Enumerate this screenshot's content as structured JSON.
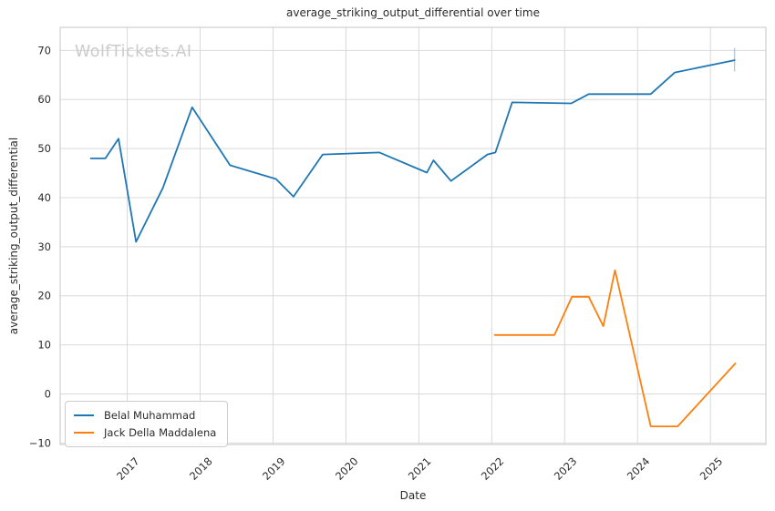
{
  "watermark": {
    "text": "WolfTickets.AI"
  },
  "chart_data": {
    "type": "line",
    "title": "average_striking_output_differential over time",
    "xlabel": "Date",
    "ylabel": "average_striking_output_differential",
    "xlim": [
      2016.08,
      2025.76
    ],
    "ylim": [
      -10.3,
      74.7
    ],
    "xticks": [
      2017,
      2018,
      2019,
      2020,
      2021,
      2022,
      2023,
      2024,
      2025
    ],
    "yticks": [
      -10,
      0,
      10,
      20,
      30,
      40,
      50,
      60,
      70
    ],
    "grid": true,
    "legend_position": "lower left",
    "series": [
      {
        "name": "Belal Muhammad",
        "color": "#1f77b4",
        "points": [
          [
            2016.5,
            48.0
          ],
          [
            2016.7,
            48.0
          ],
          [
            2016.88,
            52.0
          ],
          [
            2017.12,
            31.0
          ],
          [
            2017.49,
            42.0
          ],
          [
            2017.89,
            58.4
          ],
          [
            2018.41,
            46.6
          ],
          [
            2019.04,
            43.8
          ],
          [
            2019.28,
            40.2
          ],
          [
            2019.68,
            48.8
          ],
          [
            2020.46,
            49.2
          ],
          [
            2021.11,
            45.1
          ],
          [
            2021.2,
            47.6
          ],
          [
            2021.44,
            43.4
          ],
          [
            2021.94,
            48.8
          ],
          [
            2022.05,
            49.2
          ],
          [
            2022.28,
            59.4
          ],
          [
            2023.09,
            59.2
          ],
          [
            2023.33,
            61.1
          ],
          [
            2024.18,
            61.1
          ],
          [
            2024.51,
            65.5
          ],
          [
            2025.33,
            68.0
          ]
        ]
      },
      {
        "name": "Jack Della Maddalena",
        "color": "#ff7f0e",
        "points": [
          [
            2022.04,
            12.0
          ],
          [
            2022.86,
            12.0
          ],
          [
            2023.1,
            19.8
          ],
          [
            2023.33,
            19.8
          ],
          [
            2023.53,
            13.8
          ],
          [
            2023.69,
            25.2
          ],
          [
            2024.18,
            -6.6
          ],
          [
            2024.55,
            -6.6
          ],
          [
            2025.34,
            6.2
          ]
        ]
      }
    ],
    "errorbar": {
      "x": 2025.33,
      "y_low": 65.7,
      "y_high": 70.5,
      "color": "#a9cce5"
    }
  },
  "style": {
    "grid_color": "#d9d9d9",
    "spine_color": "#cfcfcf",
    "tick_color": "#2b2b2b"
  }
}
